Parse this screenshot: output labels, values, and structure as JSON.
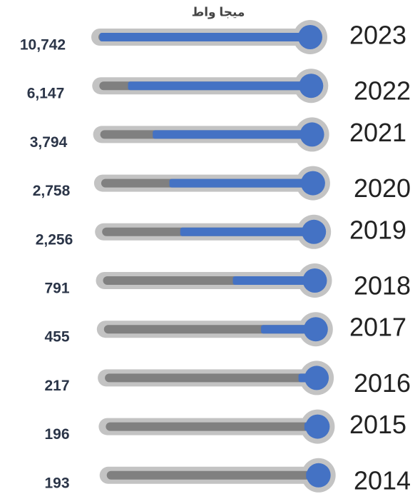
{
  "chart_data": {
    "type": "thermometer",
    "title": "ميجا واط",
    "categories": [
      "2023",
      "2022",
      "2021",
      "2020",
      "2019",
      "2018",
      "2017",
      "2016",
      "2015",
      "2014"
    ],
    "values": [
      10742,
      6147,
      3794,
      2758,
      2256,
      791,
      455,
      217,
      196,
      193
    ],
    "value_labels": [
      "10,742",
      "6,147",
      "3,794",
      "2,758",
      "2,256",
      "791",
      "455",
      "217",
      "196",
      "193"
    ],
    "color": "#4472c4",
    "track_color": "#808080",
    "frame_color": "#c3c3c3",
    "log": true,
    "xlim": [
      150,
      11000
    ]
  }
}
